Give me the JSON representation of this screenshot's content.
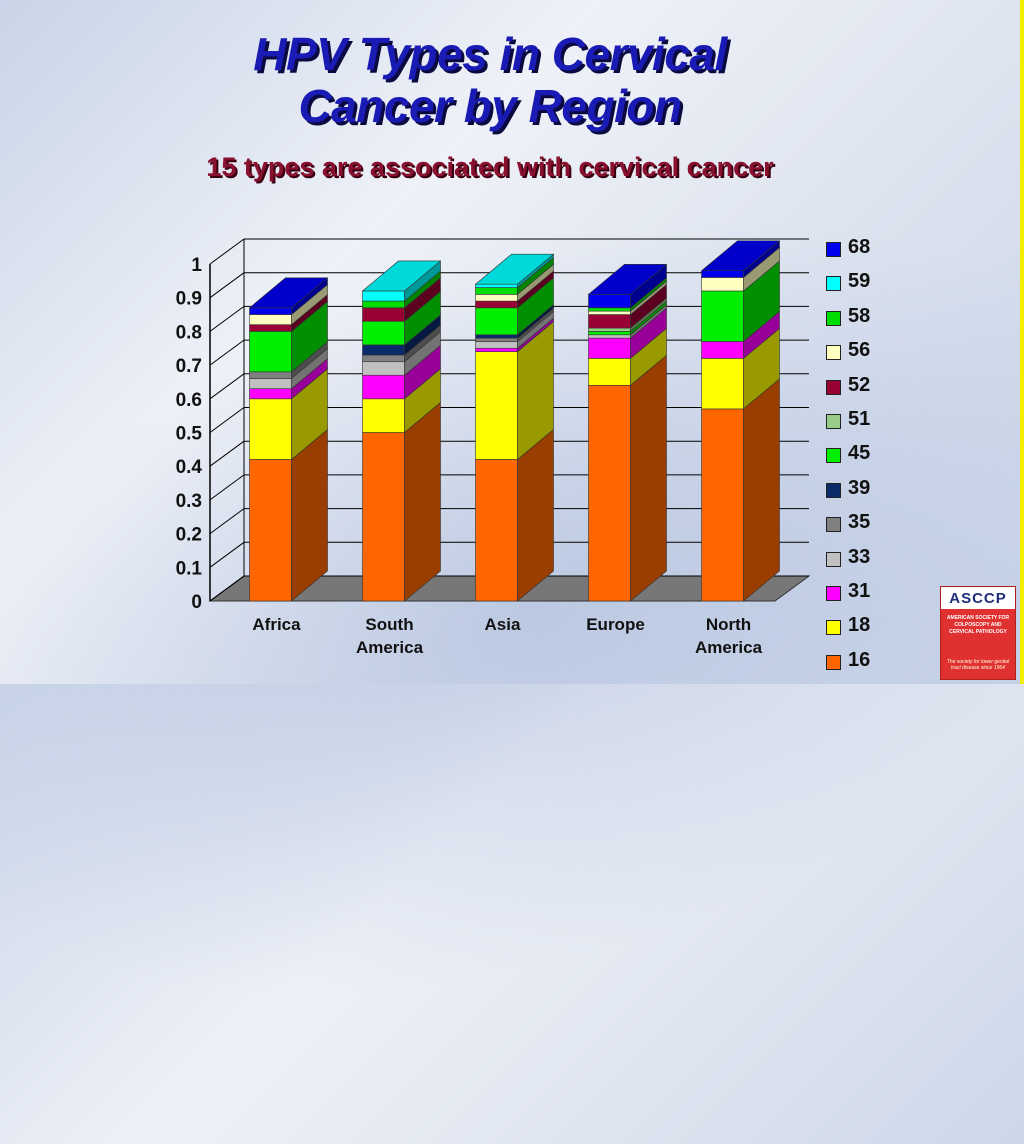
{
  "title_line1": "HPV Types in Cervical",
  "title_line2": "Cancer by Region",
  "subtitle": "15 types are associated with cervical cancer",
  "logo": {
    "letters": "ASCCP",
    "name": "AMERICAN SOCIETY FOR COLPOSCOPY AND CERVICAL PATHOLOGY",
    "motto": "The society for lower genital tract disease since 1964"
  },
  "chart_data": {
    "type": "bar",
    "stacked": true,
    "three_d": true,
    "ylim": [
      0,
      1
    ],
    "yticks": [
      "0",
      "0.1",
      "0.2",
      "0.3",
      "0.4",
      "0.5",
      "0.6",
      "0.7",
      "0.8",
      "0.9",
      "1"
    ],
    "categories": [
      [
        "Africa"
      ],
      [
        "South",
        "America"
      ],
      [
        "Asia"
      ],
      [
        "Europe"
      ],
      [
        "North",
        "America"
      ]
    ],
    "legend_position": "right",
    "series": [
      {
        "name": "16",
        "color": "#ff6600",
        "values": [
          0.42,
          0.5,
          0.42,
          0.64,
          0.57
        ]
      },
      {
        "name": "18",
        "color": "#ffff00",
        "values": [
          0.18,
          0.1,
          0.32,
          0.08,
          0.15
        ]
      },
      {
        "name": "31",
        "color": "#ff00ff",
        "values": [
          0.03,
          0.07,
          0.01,
          0.06,
          0.05
        ]
      },
      {
        "name": "33",
        "color": "#c0c0c0",
        "values": [
          0.03,
          0.04,
          0.02,
          0.01,
          0.0
        ]
      },
      {
        "name": "35",
        "color": "#808080",
        "values": [
          0.02,
          0.02,
          0.01,
          0.0,
          0.0
        ]
      },
      {
        "name": "39",
        "color": "#0a2a6a",
        "values": [
          0.0,
          0.03,
          0.01,
          0.0,
          0.0
        ]
      },
      {
        "name": "45",
        "color": "#00ee00",
        "values": [
          0.12,
          0.07,
          0.08,
          0.01,
          0.15
        ]
      },
      {
        "name": "51",
        "color": "#99cc88",
        "values": [
          0.0,
          0.0,
          0.0,
          0.01,
          0.0
        ]
      },
      {
        "name": "52",
        "color": "#990033",
        "values": [
          0.02,
          0.04,
          0.02,
          0.04,
          0.0
        ]
      },
      {
        "name": "56",
        "color": "#ffffc0",
        "values": [
          0.03,
          0.0,
          0.02,
          0.01,
          0.04
        ]
      },
      {
        "name": "58",
        "color": "#00dd00",
        "values": [
          0.0,
          0.02,
          0.02,
          0.01,
          0.0
        ]
      },
      {
        "name": "59",
        "color": "#00ffff",
        "values": [
          0.0,
          0.03,
          0.01,
          0.0,
          0.0
        ]
      },
      {
        "name": "68",
        "color": "#0000ee",
        "values": [
          0.02,
          0.0,
          0.0,
          0.04,
          0.02
        ]
      }
    ]
  }
}
